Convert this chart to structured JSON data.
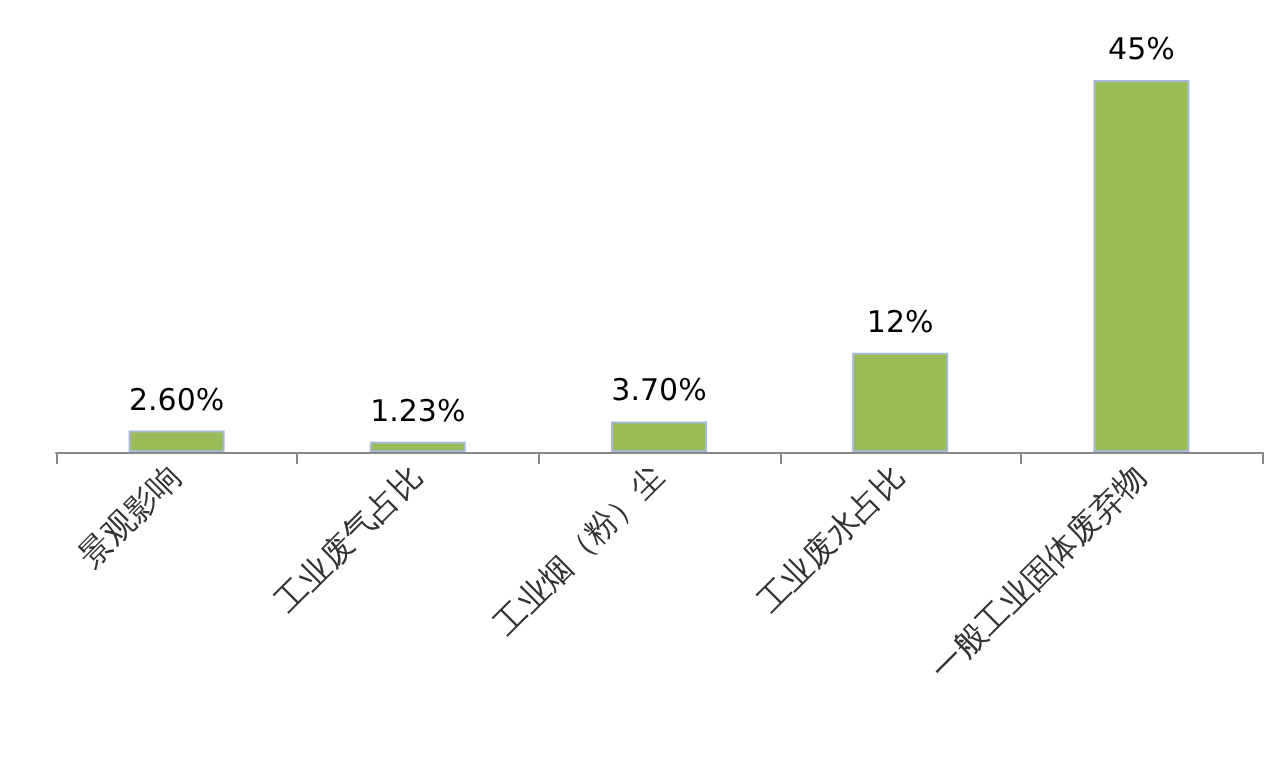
{
  "chart_data": {
    "type": "bar",
    "categories": [
      "景观影响",
      "工业废气占比",
      "工业烟（粉）尘",
      "工业废水占比",
      "一般工业固体废弃物"
    ],
    "values": [
      2.6,
      1.23,
      3.7,
      12,
      45
    ],
    "value_labels": [
      "2.60%",
      "1.23%",
      "3.70%",
      "12%",
      "45%"
    ],
    "color": "#9bbb59"
  }
}
